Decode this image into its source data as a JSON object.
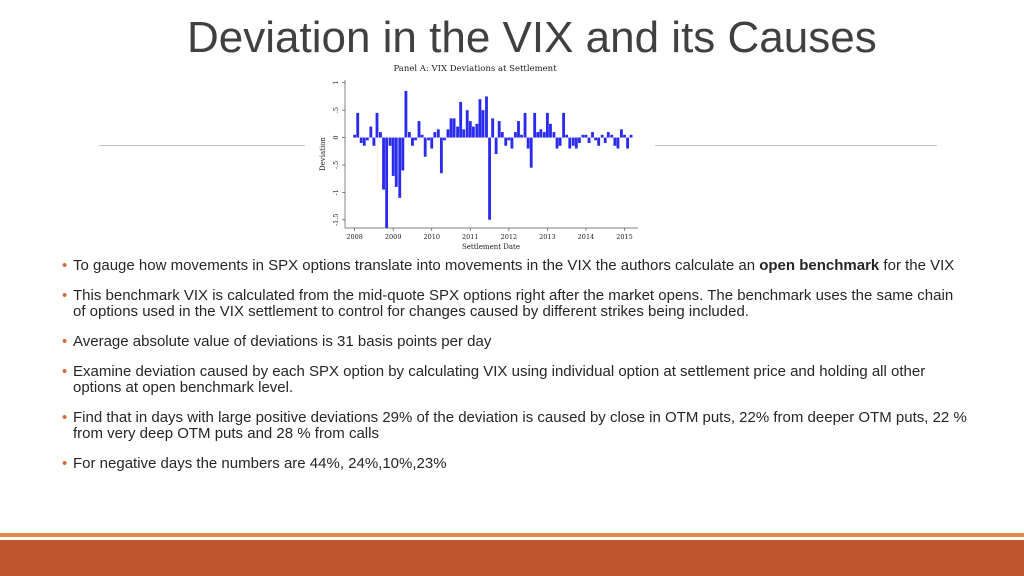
{
  "slide": {
    "title": "Deviation in the VIX and its Causes",
    "bullet_symbol": "•",
    "bullets": [
      {
        "pre": " To gauge how movements in SPX options translate into movements in the VIX the authors calculate an ",
        "bold": "open benchmark",
        "post": " for the VIX"
      },
      {
        "pre": "This benchmark VIX is calculated from the mid-quote SPX options right after the market opens. The benchmark uses the same chain of options used in the VIX settlement to control for changes caused by different strikes being included.",
        "bold": "",
        "post": ""
      },
      {
        "pre": "Average absolute value of deviations is 31 basis points per day",
        "bold": "",
        "post": ""
      },
      {
        "pre": "Examine deviation caused by each SPX option by calculating VIX using individual option at settlement price and holding all other options at open benchmark level.",
        "bold": "",
        "post": ""
      },
      {
        "pre": "Find that in days with large positive deviations 29% of the deviation is caused by close in OTM puts, 22% from deeper OTM puts, 22 % from very deep OTM puts and 28 % from calls",
        "bold": "",
        "post": ""
      },
      {
        "pre": "For negative days the numbers are 44%, 24%,10%,23%",
        "bold": "",
        "post": ""
      }
    ]
  },
  "colors": {
    "bar": "#2b2bf0",
    "title": "#404040",
    "accent": "#c0562d"
  },
  "chart_data": {
    "type": "bar",
    "title": "Panel A: VIX Deviations at Settlement",
    "xlabel": "Settlement Date",
    "ylabel": "Deviation",
    "xlim": [
      2007.75,
      2015.35
    ],
    "ylim": [
      -1.65,
      1.05
    ],
    "xticks": [
      2008,
      2009,
      2010,
      2011,
      2012,
      2013,
      2014,
      2015
    ],
    "xtick_labels": [
      "2008",
      "2009",
      "2010",
      "2011",
      "2012",
      "2013",
      "2014",
      "2015"
    ],
    "yticks": [
      1,
      0.5,
      0,
      -0.5,
      -1,
      -1.5
    ],
    "ytick_labels": [
      "1",
      ".5",
      "0",
      "-.5",
      "-1",
      "-1.5"
    ],
    "x": [
      2008.0,
      2008.08,
      2008.17,
      2008.25,
      2008.33,
      2008.42,
      2008.5,
      2008.58,
      2008.67,
      2008.75,
      2008.83,
      2008.92,
      2009.0,
      2009.08,
      2009.17,
      2009.25,
      2009.33,
      2009.42,
      2009.5,
      2009.58,
      2009.67,
      2009.75,
      2009.83,
      2009.92,
      2010.0,
      2010.08,
      2010.17,
      2010.25,
      2010.33,
      2010.42,
      2010.5,
      2010.58,
      2010.67,
      2010.75,
      2010.83,
      2010.92,
      2011.0,
      2011.08,
      2011.17,
      2011.25,
      2011.33,
      2011.42,
      2011.5,
      2011.58,
      2011.67,
      2011.75,
      2011.83,
      2011.92,
      2012.0,
      2012.08,
      2012.17,
      2012.25,
      2012.33,
      2012.42,
      2012.5,
      2012.58,
      2012.67,
      2012.75,
      2012.83,
      2012.92,
      2013.0,
      2013.08,
      2013.17,
      2013.25,
      2013.33,
      2013.42,
      2013.5,
      2013.58,
      2013.67,
      2013.75,
      2013.83,
      2013.92,
      2014.0,
      2014.08,
      2014.17,
      2014.25,
      2014.33,
      2014.42,
      2014.5,
      2014.58,
      2014.67,
      2014.75,
      2014.83,
      2014.92,
      2015.0,
      2015.08,
      2015.17
    ],
    "values": [
      0.05,
      0.45,
      -0.1,
      -0.15,
      -0.05,
      0.2,
      -0.15,
      0.45,
      0.1,
      -0.95,
      -1.65,
      -0.15,
      -0.7,
      -0.9,
      -1.1,
      -0.6,
      0.85,
      0.1,
      -0.15,
      -0.05,
      0.3,
      0.05,
      -0.35,
      -0.05,
      -0.2,
      0.1,
      0.15,
      -0.65,
      -0.05,
      0.15,
      0.35,
      0.35,
      0.2,
      0.65,
      0.15,
      0.5,
      0.3,
      0.2,
      0.25,
      0.7,
      0.5,
      0.75,
      -1.5,
      0.35,
      -0.3,
      0.3,
      0.1,
      -0.15,
      -0.05,
      -0.2,
      0.1,
      0.3,
      0.05,
      0.45,
      -0.2,
      -0.55,
      0.45,
      0.1,
      0.15,
      0.1,
      0.45,
      0.25,
      0.1,
      -0.2,
      -0.15,
      0.45,
      0.05,
      -0.2,
      -0.15,
      -0.2,
      -0.1,
      0.05,
      0.05,
      -0.1,
      0.1,
      -0.05,
      -0.15,
      0.05,
      -0.1,
      0.1,
      0.05,
      -0.15,
      -0.2,
      0.15,
      0.05,
      -0.2,
      0.05
    ]
  }
}
